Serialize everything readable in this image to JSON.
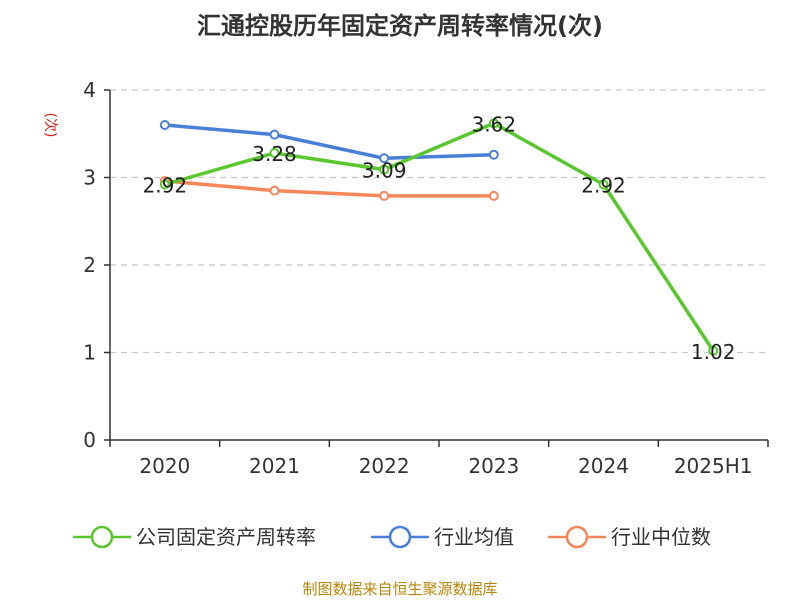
{
  "title": "汇通控股历年固定资产周转率情况(次)",
  "source": "制图数据来自恒生聚源数据库",
  "chart_data": {
    "type": "line",
    "title": "汇通控股历年固定资产周转率情况(次)",
    "ylabel": "(次)",
    "xlabel": "",
    "categories": [
      "2020",
      "2021",
      "2022",
      "2023",
      "2024",
      "2025H1"
    ],
    "ylim": [
      0,
      4
    ],
    "yticks": [
      0,
      1,
      2,
      3,
      4
    ],
    "grid": true,
    "legend_position": "bottom",
    "series": [
      {
        "name": "公司固定资产周转率",
        "color": "#5ac72e",
        "values": [
          2.92,
          3.28,
          3.09,
          3.62,
          2.92,
          1.02
        ],
        "labels": [
          "2.92",
          "3.28",
          "3.09",
          "3.62",
          "2.92",
          "1.02"
        ]
      },
      {
        "name": "行业均值",
        "color": "#4a7fd8",
        "values": [
          3.6,
          3.49,
          3.22,
          3.26,
          null,
          null
        ]
      },
      {
        "name": "行业中位数",
        "color": "#f5875a",
        "values": [
          2.96,
          2.85,
          2.79,
          2.79,
          null,
          null
        ]
      }
    ]
  }
}
